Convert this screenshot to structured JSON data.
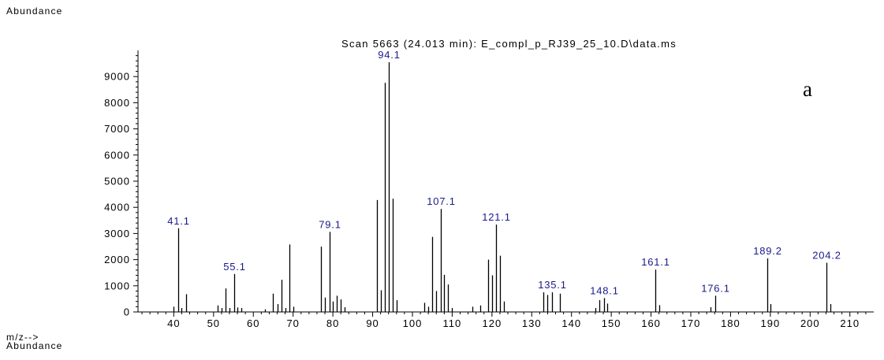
{
  "header": {
    "y_axis_label": "Abundance",
    "x_axis_label": "m/z-->",
    "next_panel_label": "Abundance",
    "panel_letter": "a"
  },
  "chart_data": {
    "type": "bar",
    "title": "Scan 5663 (24.013 min): E_compl_p_RJ39_25_10.D\\data.ms",
    "xlabel": "m/z-->",
    "ylabel": "Abundance",
    "xlim": [
      31,
      216
    ],
    "ylim": [
      0,
      10000
    ],
    "x_ticks": [
      40,
      50,
      60,
      70,
      80,
      90,
      100,
      110,
      120,
      130,
      140,
      150,
      160,
      170,
      180,
      190,
      200,
      210
    ],
    "y_ticks": [
      0,
      1000,
      2000,
      3000,
      4000,
      5000,
      6000,
      7000,
      8000,
      9000
    ],
    "peak_color": "#000000",
    "label_color": "#1a1a8c",
    "peaks": [
      {
        "mz": 40,
        "abundance": 200
      },
      {
        "mz": 41.1,
        "abundance": 3200,
        "label": "41.1"
      },
      {
        "mz": 42,
        "abundance": 150
      },
      {
        "mz": 43,
        "abundance": 680
      },
      {
        "mz": 51,
        "abundance": 250
      },
      {
        "mz": 52,
        "abundance": 150
      },
      {
        "mz": 53,
        "abundance": 900
      },
      {
        "mz": 54,
        "abundance": 150
      },
      {
        "mz": 55.1,
        "abundance": 1450,
        "label": "55.1"
      },
      {
        "mz": 56,
        "abundance": 170
      },
      {
        "mz": 57,
        "abundance": 150
      },
      {
        "mz": 63,
        "abundance": 100
      },
      {
        "mz": 65,
        "abundance": 700
      },
      {
        "mz": 66,
        "abundance": 300
      },
      {
        "mz": 67,
        "abundance": 1230
      },
      {
        "mz": 68,
        "abundance": 150
      },
      {
        "mz": 69,
        "abundance": 2580
      },
      {
        "mz": 70,
        "abundance": 200
      },
      {
        "mz": 77,
        "abundance": 2500
      },
      {
        "mz": 78,
        "abundance": 550
      },
      {
        "mz": 79.1,
        "abundance": 3060,
        "label": "79.1"
      },
      {
        "mz": 80,
        "abundance": 400
      },
      {
        "mz": 81,
        "abundance": 620
      },
      {
        "mz": 82,
        "abundance": 480
      },
      {
        "mz": 83,
        "abundance": 180
      },
      {
        "mz": 91,
        "abundance": 4280
      },
      {
        "mz": 92,
        "abundance": 830
      },
      {
        "mz": 93,
        "abundance": 8760
      },
      {
        "mz": 94.1,
        "abundance": 9550,
        "label": "94.1"
      },
      {
        "mz": 95,
        "abundance": 4330
      },
      {
        "mz": 96,
        "abundance": 450
      },
      {
        "mz": 103,
        "abundance": 350
      },
      {
        "mz": 104,
        "abundance": 200
      },
      {
        "mz": 105,
        "abundance": 2870
      },
      {
        "mz": 106,
        "abundance": 800
      },
      {
        "mz": 107.1,
        "abundance": 3940,
        "label": "107.1"
      },
      {
        "mz": 108,
        "abundance": 1420
      },
      {
        "mz": 109,
        "abundance": 1050
      },
      {
        "mz": 110,
        "abundance": 150
      },
      {
        "mz": 115,
        "abundance": 200
      },
      {
        "mz": 117,
        "abundance": 250
      },
      {
        "mz": 119,
        "abundance": 2000
      },
      {
        "mz": 120,
        "abundance": 1400
      },
      {
        "mz": 121.1,
        "abundance": 3340,
        "label": "121.1"
      },
      {
        "mz": 122,
        "abundance": 2150
      },
      {
        "mz": 123,
        "abundance": 400
      },
      {
        "mz": 133,
        "abundance": 750
      },
      {
        "mz": 134,
        "abundance": 650
      },
      {
        "mz": 135.1,
        "abundance": 750,
        "label": "135.1"
      },
      {
        "mz": 137,
        "abundance": 700
      },
      {
        "mz": 146,
        "abundance": 150
      },
      {
        "mz": 147,
        "abundance": 450
      },
      {
        "mz": 148.1,
        "abundance": 530,
        "label": "148.1"
      },
      {
        "mz": 149,
        "abundance": 320
      },
      {
        "mz": 161.1,
        "abundance": 1620,
        "label": "161.1"
      },
      {
        "mz": 162,
        "abundance": 260
      },
      {
        "mz": 175,
        "abundance": 180
      },
      {
        "mz": 176.1,
        "abundance": 620,
        "label": "176.1"
      },
      {
        "mz": 189.2,
        "abundance": 2050,
        "label": "189.2"
      },
      {
        "mz": 190,
        "abundance": 300
      },
      {
        "mz": 204.2,
        "abundance": 1880,
        "label": "204.2"
      },
      {
        "mz": 205,
        "abundance": 300
      }
    ]
  }
}
